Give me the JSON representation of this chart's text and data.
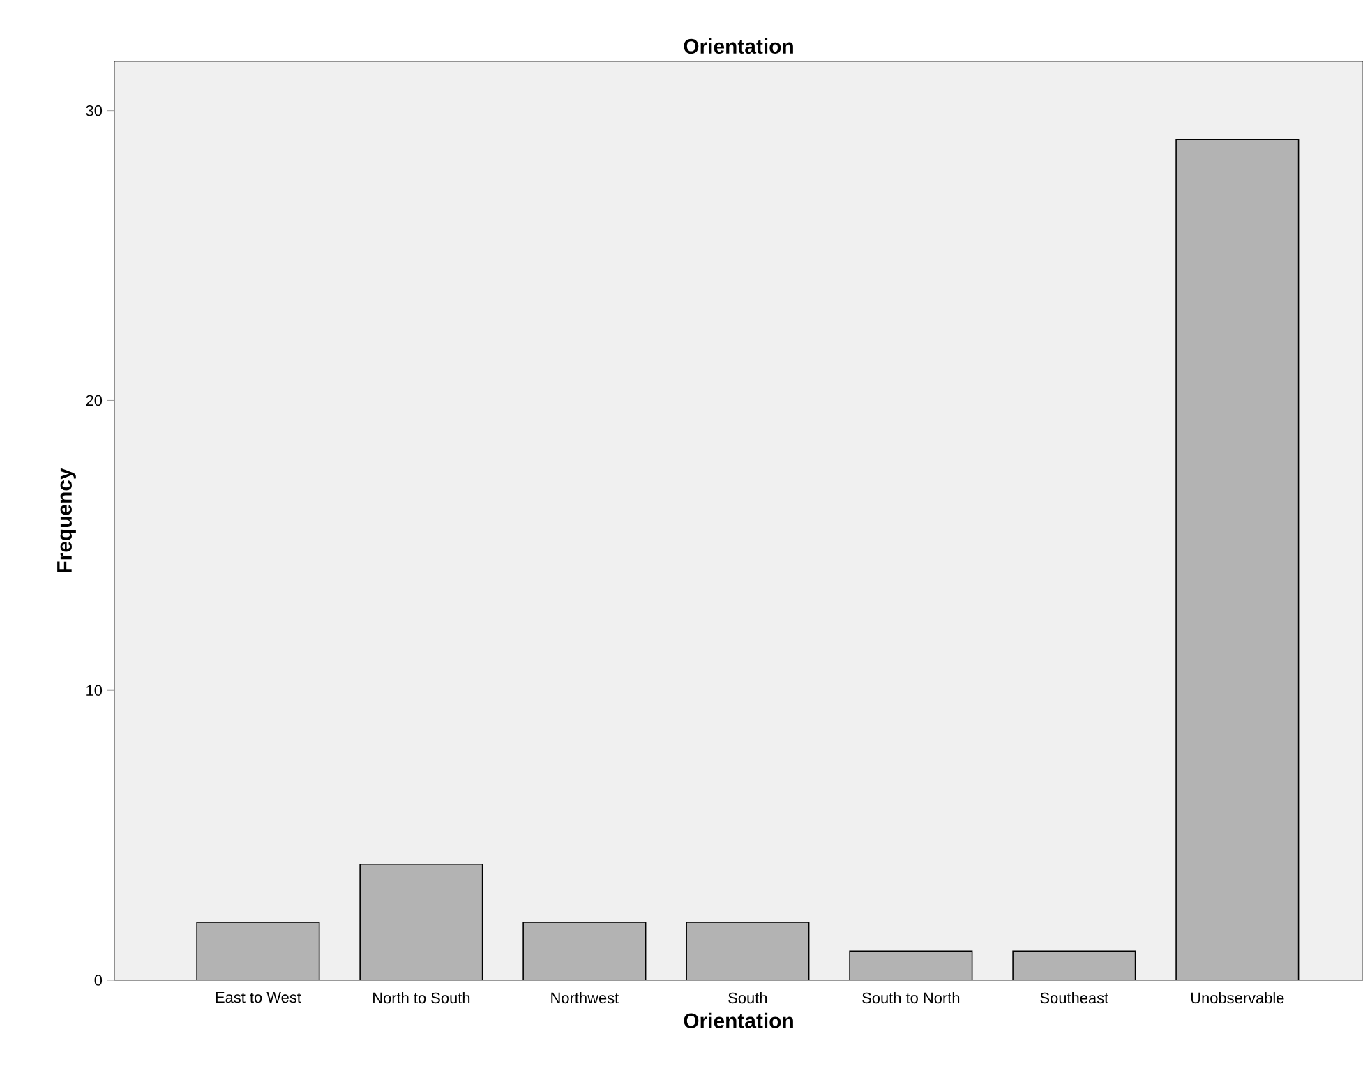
{
  "chart_data": {
    "type": "bar",
    "title": "Orientation",
    "xlabel": "Orientation",
    "ylabel": "Frequency",
    "categories": [
      "East to West",
      "North to South",
      "Northwest",
      "South",
      "South to North",
      "Southeast",
      "Unobservable"
    ],
    "values": [
      2,
      4,
      2,
      2,
      1,
      1,
      29
    ],
    "color": "#b3b3b3",
    "ylim": [
      0,
      31.7
    ],
    "yticks": [
      0,
      10,
      20,
      30
    ],
    "grid": false
  }
}
